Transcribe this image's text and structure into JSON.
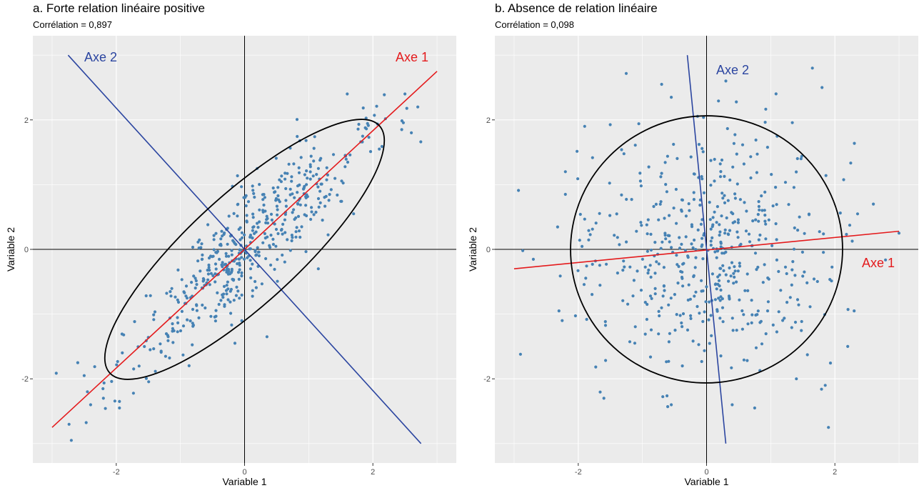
{
  "colors": {
    "panel_bg": "#EBEBEB",
    "grid": "#FFFFFF",
    "points": "#4682B4",
    "axe1": "#E41A1C",
    "axe2": "#2B45A0",
    "ellipse": "#000000",
    "zero_lines": "#000000"
  },
  "chart_data": [
    {
      "type": "scatter",
      "title": "a. Forte relation linéaire positive",
      "subtitle": "Corrélation = 0,897",
      "correlation": 0.897,
      "xlabel": "Variable 1",
      "ylabel": "Variable 2",
      "xlim": [
        -3.3,
        3.3
      ],
      "ylim": [
        -3.3,
        3.3
      ],
      "x_ticks": [
        -2,
        0,
        2
      ],
      "y_ticks": [
        -2,
        0,
        2
      ],
      "x_tick_labels": [
        "-2",
        "0",
        "2"
      ],
      "y_tick_labels": [
        "-2",
        "0",
        "2"
      ],
      "grid": true,
      "n_points": 500,
      "axe1": {
        "label": "Axe 1",
        "from": [
          -3.0,
          -2.75
        ],
        "to": [
          3.0,
          2.75
        ]
      },
      "axe2": {
        "label": "Axe 2",
        "from": [
          -2.75,
          3.0
        ],
        "to": [
          2.75,
          -3.0
        ]
      },
      "ellipse": {
        "center": [
          0,
          0
        ],
        "semi_major": 2.85,
        "semi_minor": 0.85,
        "angle_deg": 42.5
      },
      "outliers": [
        [
          -2.7,
          -2.95
        ],
        [
          -2.6,
          -1.75
        ],
        [
          -2.5,
          -1.95
        ],
        [
          -2.45,
          -2.2
        ],
        [
          -2.4,
          -2.4
        ],
        [
          -2.2,
          -2.3
        ],
        [
          -1.95,
          -2.45
        ],
        [
          -1.95,
          -2.35
        ],
        [
          2.5,
          2.4
        ],
        [
          2.6,
          1.8
        ],
        [
          2.7,
          2.2
        ],
        [
          1.6,
          2.4
        ],
        [
          0.35,
          -1.35
        ],
        [
          -0.15,
          -1.45
        ],
        [
          1.15,
          -0.3
        ],
        [
          1.7,
          0.55
        ],
        [
          2.1,
          1.55
        ],
        [
          2.45,
          1.85
        ]
      ]
    },
    {
      "type": "scatter",
      "title": "b. Absence de relation linéaire",
      "subtitle": "Corrélation = 0,098",
      "correlation": 0.098,
      "xlabel": "Variable 1",
      "ylabel": "Variable 2",
      "xlim": [
        -3.3,
        3.3
      ],
      "ylim": [
        -3.3,
        3.3
      ],
      "x_ticks": [
        -2,
        0,
        2
      ],
      "y_ticks": [
        -2,
        0,
        2
      ],
      "x_tick_labels": [
        "-2",
        "0",
        "2"
      ],
      "y_tick_labels": [
        "-2",
        "0",
        "2"
      ],
      "grid": true,
      "n_points": 500,
      "axe1": {
        "label": "Axe 1",
        "from": [
          -3.0,
          -0.3
        ],
        "to": [
          3.0,
          0.28
        ]
      },
      "axe2": {
        "label": "Axe 2",
        "from": [
          -0.3,
          3.0
        ],
        "to": [
          0.3,
          -3.0
        ]
      },
      "ellipse": {
        "center": [
          0,
          0
        ],
        "semi_major": 2.12,
        "semi_minor": 2.08,
        "angle_deg": 5
      },
      "outliers": [
        [
          -2.9,
          -1.62
        ],
        [
          -2.3,
          -0.95
        ],
        [
          -2.25,
          -1.1
        ],
        [
          -2.2,
          0.85
        ],
        [
          -2.2,
          1.2
        ],
        [
          -1.9,
          1.9
        ],
        [
          -1.6,
          -2.3
        ],
        [
          -0.7,
          2.55
        ],
        [
          -0.55,
          2.35
        ],
        [
          -0.55,
          -2.4
        ],
        [
          0.3,
          2.6
        ],
        [
          0.4,
          -2.4
        ],
        [
          1.65,
          2.8
        ],
        [
          1.8,
          2.5
        ],
        [
          1.9,
          -2.75
        ],
        [
          1.85,
          -2.1
        ],
        [
          2.6,
          0.7
        ],
        [
          2.2,
          -1.5
        ],
        [
          2.3,
          -0.95
        ],
        [
          3.0,
          0.25
        ],
        [
          1.4,
          -2.0
        ],
        [
          0.75,
          -2.45
        ]
      ]
    }
  ]
}
